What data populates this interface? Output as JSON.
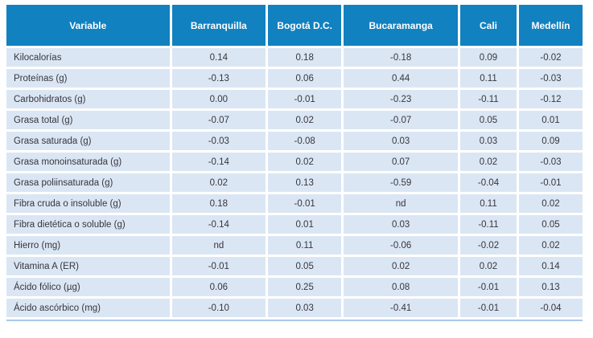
{
  "table": {
    "columns": [
      "Variable",
      "Barranquilla",
      "Bogotá D.C.",
      "Bucaramanga",
      "Cali",
      "Medellín"
    ],
    "rows": [
      {
        "variable": "Kilocalorías",
        "values": [
          "0.14",
          "0.18",
          "-0.18",
          "0.09",
          "-0.02"
        ]
      },
      {
        "variable": "Proteínas (g)",
        "values": [
          "-0.13",
          "0.06",
          "0.44",
          "0.11",
          "-0.03"
        ]
      },
      {
        "variable": "Carbohidratos (g)",
        "values": [
          "0.00",
          "-0.01",
          "-0.23",
          "-0.11",
          "-0.12"
        ]
      },
      {
        "variable": "Grasa total (g)",
        "values": [
          "-0.07",
          "0.02",
          "-0.07",
          "0.05",
          "0.01"
        ]
      },
      {
        "variable": "Grasa saturada (g)",
        "values": [
          "-0.03",
          "-0.08",
          "0.03",
          "0.03",
          "0.09"
        ]
      },
      {
        "variable": "Grasa monoinsaturada (g)",
        "values": [
          "-0.14",
          "0.02",
          "0.07",
          "0.02",
          "-0.03"
        ]
      },
      {
        "variable": "Grasa poliinsaturada (g)",
        "values": [
          "0.02",
          "0.13",
          "-0.59",
          "-0.04",
          "-0.01"
        ]
      },
      {
        "variable": "Fibra cruda o insoluble (g)",
        "values": [
          "0.18",
          "-0.01",
          "nd",
          "0.11",
          "0.02"
        ]
      },
      {
        "variable": "Fibra dietética o soluble (g)",
        "values": [
          "-0.14",
          "0.01",
          "0.03",
          "-0.11",
          "0.05"
        ]
      },
      {
        "variable": "Hierro (mg)",
        "values": [
          "nd",
          "0.11",
          "-0.06",
          "-0.02",
          "0.02"
        ]
      },
      {
        "variable": "Vitamina A (ER)",
        "values": [
          "-0.01",
          "0.05",
          "0.02",
          "0.02",
          "0.14"
        ]
      },
      {
        "variable": "Ácido fólico (µg)",
        "values": [
          "0.06",
          "0.25",
          "0.08",
          "-0.01",
          "0.13"
        ]
      },
      {
        "variable": "Ácido ascórbico (mg)",
        "values": [
          "-0.10",
          "0.03",
          "-0.41",
          "-0.01",
          "-0.04"
        ]
      }
    ]
  },
  "colors": {
    "header_bg": "#1181c0",
    "header_text": "#ffffff",
    "row_bg": "#dbe6f4",
    "body_text": "#36363c",
    "bottom_rule": "#aac9e8"
  }
}
